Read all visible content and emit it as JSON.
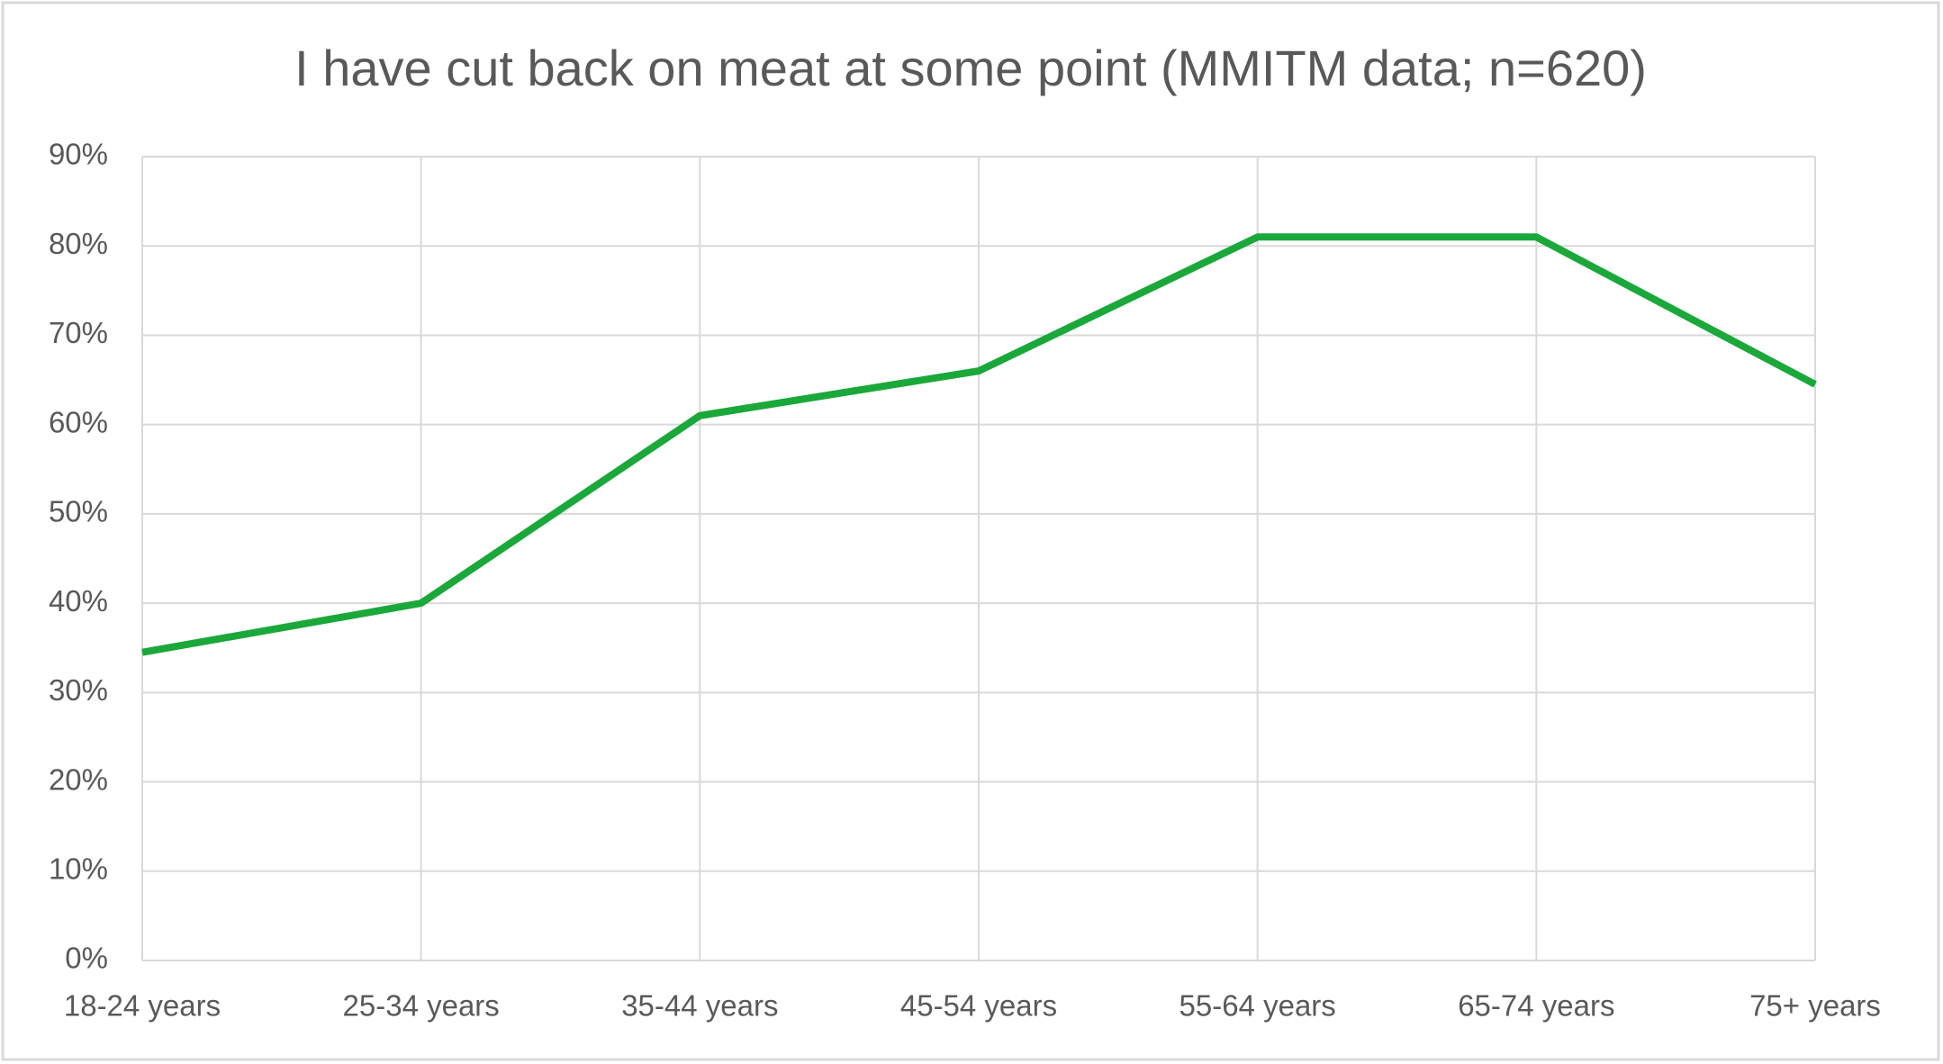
{
  "chart_data": {
    "type": "line",
    "title": "I have cut back on meat at some point (MMITM data; n=620)",
    "categories": [
      "18-24 years",
      "25-34 years",
      "35-44 years",
      "45-54 years",
      "55-64 years",
      "65-74 years",
      "75+ years"
    ],
    "values": [
      34.5,
      40,
      61,
      66,
      81,
      81,
      64.5
    ],
    "color": "#1aa83a",
    "ylim": [
      0,
      90
    ],
    "yticks": [
      {
        "value": 0,
        "label": "0%"
      },
      {
        "value": 10,
        "label": "10%"
      },
      {
        "value": 20,
        "label": "20%"
      },
      {
        "value": 30,
        "label": "30%"
      },
      {
        "value": 40,
        "label": "40%"
      },
      {
        "value": 50,
        "label": "50%"
      },
      {
        "value": 60,
        "label": "60%"
      },
      {
        "value": 70,
        "label": "70%"
      },
      {
        "value": 80,
        "label": "80%"
      },
      {
        "value": 90,
        "label": "90%"
      }
    ],
    "grid": true
  }
}
